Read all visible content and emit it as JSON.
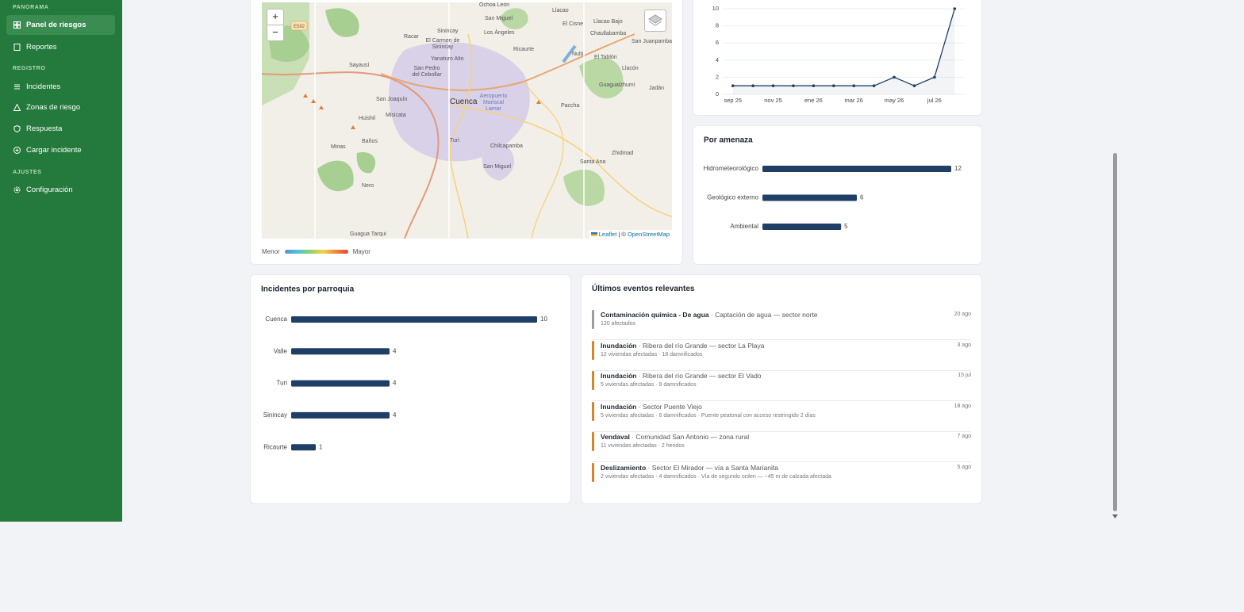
{
  "sidebar": {
    "sections": [
      {
        "title": "PANORAMA",
        "items": [
          "Panel de riesgos",
          "Reportes"
        ]
      },
      {
        "title": "REGISTRO",
        "items": [
          "Incidentes",
          "Zonas de riesgo",
          "Respuesta",
          "Cargar incidente"
        ]
      },
      {
        "title": "AJUSTES",
        "items": [
          "Configuración"
        ]
      }
    ]
  },
  "map": {
    "zoom_in": "+",
    "zoom_out": "−",
    "road_label": "E582",
    "places": [
      "Ochoa León",
      "Llacao",
      "San Miguel",
      "Sinincay",
      "El Cisne",
      "Llacao Bajo",
      "Chaullabamba",
      "San Juanpamba",
      "Los Ángeles",
      "Racar",
      "El Carmen de Sinincay",
      "Ricaurte",
      "Nulti",
      "El Tablón",
      "Yanaturo Alto",
      "Llacón",
      "Sayausí",
      "San Pedro del Cebollar",
      "Guagualzhumi",
      "Jadán",
      "San Joaquín",
      "Cuenca",
      "Aeropuerto Mariscal Lamar",
      "Paccha",
      "Huishil",
      "Misicata",
      "Baños",
      "Turi",
      "Chilcapamba",
      "Minas",
      "Zhidmad",
      "Santa Ana",
      "San Miguel",
      "Nero",
      "Guagua Tarqui"
    ],
    "attribution_link": "Leaflet",
    "attribution_text": "| ©",
    "attribution_source": "OpenStreetMap",
    "legend_min": "Menor",
    "legend_max": "Mayor"
  },
  "chart_data": [
    {
      "type": "line",
      "categories": [
        "sep 25",
        null,
        "nov 25",
        null,
        "ene 26",
        null,
        "mar 26",
        null,
        "may 26",
        null,
        "jul 26",
        null
      ],
      "values": [
        1,
        1,
        1,
        1,
        1,
        1,
        1,
        1,
        2,
        1,
        2,
        10
      ],
      "ylim": [
        0,
        10
      ],
      "yticks": [
        0,
        2,
        4,
        6,
        8,
        10
      ],
      "grid": true,
      "color": "#1f3f66"
    },
    {
      "type": "hbar",
      "title": "Por amenaza",
      "categories": [
        "Hidrometeorológico",
        "Geológico externo",
        "Ambiental"
      ],
      "values": [
        12,
        6,
        5
      ],
      "color": "#1f3f66"
    },
    {
      "type": "hbar",
      "title": "Incidentes por parroquia",
      "categories": [
        "Cuenca",
        "Valle",
        "Turi",
        "Sinincay",
        "Ricaurte"
      ],
      "values": [
        10,
        4,
        4,
        4,
        1
      ],
      "color": "#1f3f66"
    }
  ],
  "events": {
    "title": "Últimos eventos relevantes",
    "items": [
      {
        "type": "Contaminación química - De agua",
        "place": "· Captación de agua — sector norte",
        "details": "120 afectados",
        "date": "20 ago",
        "color": "#9e9e9e"
      },
      {
        "type": "Inundación",
        "place": "· Ribera del río Grande — sector La Playa",
        "details": "12 viviendas afectadas · 18 damnificados",
        "date": "3 ago",
        "color": "#d4862b"
      },
      {
        "type": "Inundación",
        "place": "· Ribera del río Grande — sector El Vado",
        "details": "5 viviendas afectadas · 9 damnificados",
        "date": "15 jul",
        "color": "#d4862b"
      },
      {
        "type": "Inundación",
        "place": "· Sector Puente Viejo",
        "details": "5 viviendas afectadas · 6 damnificados · Puente peatonal con acceso restringido 2 días",
        "date": "18 ago",
        "color": "#d4862b"
      },
      {
        "type": "Vendaval",
        "place": "· Comunidad San Antonio — zona rural",
        "details": "11 viviendas afectadas · 2 heridos",
        "date": "7 ago",
        "color": "#d4862b"
      },
      {
        "type": "Deslizamiento",
        "place": "· Sector El Mirador — vía a Santa Marianita",
        "details": "2 viviendas afectadas · 4 damnificados · Vía de segundo orden — ~45 m de calzada afectada",
        "date": "5 ago",
        "color": "#d4862b"
      }
    ]
  }
}
